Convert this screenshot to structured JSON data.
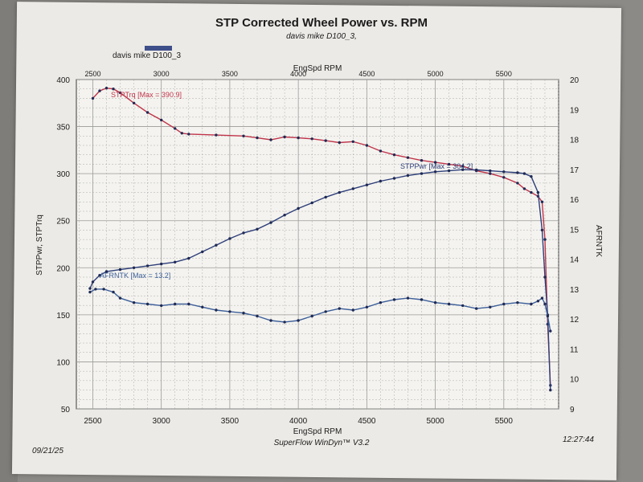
{
  "header": {
    "title": "STP Corrected Wheel Power vs. RPM",
    "subtitle": "davis mike D100_3,",
    "legend_label": "davis mike D100_3"
  },
  "footer": {
    "date": "09/21/25",
    "software": "SuperFlow WinDyn™ V3.2",
    "time": "12:27:44"
  },
  "colors": {
    "paper": "#eceae6",
    "torque": "#c0344a",
    "power": "#2e3f7a",
    "afr": "#3d5f9a",
    "grid": "#9a9a9a"
  },
  "chart_data": {
    "type": "line",
    "title": "STP Corrected Wheel Power vs. RPM",
    "xlabel": "EngSpd RPM",
    "x2label": "EngSpd RPM",
    "ylabel": "STPPwr, STPTrq",
    "y2label": "AFRNTK",
    "xlim": [
      2380,
      5900
    ],
    "ylim": [
      50,
      400
    ],
    "y2lim": [
      9,
      20
    ],
    "xticks": [
      2500,
      3000,
      3500,
      4000,
      4500,
      5000,
      5500
    ],
    "yticks": [
      50,
      100,
      150,
      200,
      250,
      300,
      350,
      400
    ],
    "y2ticks": [
      9,
      10,
      11,
      12,
      13,
      14,
      15,
      16,
      17,
      18,
      19,
      20
    ],
    "grid": true,
    "series": [
      {
        "name": "STPTrq",
        "annotation": "STPTrq [Max = 390.9]",
        "axis": "left",
        "x": [
          2500,
          2550,
          2600,
          2650,
          2700,
          2800,
          2900,
          3000,
          3100,
          3150,
          3200,
          3400,
          3600,
          3700,
          3800,
          3900,
          4000,
          4100,
          4200,
          4300,
          4400,
          4500,
          4600,
          4700,
          4800,
          4900,
          5000,
          5100,
          5200,
          5300,
          5400,
          5500,
          5600,
          5650,
          5700,
          5750,
          5780,
          5800,
          5820,
          5840
        ],
        "values": [
          380,
          388,
          390.9,
          390,
          386,
          375,
          365,
          357,
          348,
          343,
          342,
          341,
          340,
          338,
          336,
          339,
          338,
          337,
          335,
          333,
          334,
          330,
          324,
          320,
          317,
          314,
          312,
          310,
          308,
          303,
          300,
          296,
          290,
          284,
          280,
          276,
          270,
          230,
          140,
          75
        ]
      },
      {
        "name": "STPPwr",
        "annotation": "STPPwr [Max = 304.2]",
        "axis": "left",
        "x": [
          2480,
          2500,
          2550,
          2600,
          2700,
          2800,
          2900,
          3000,
          3100,
          3200,
          3300,
          3400,
          3500,
          3600,
          3700,
          3800,
          3900,
          4000,
          4100,
          4200,
          4300,
          4400,
          4500,
          4600,
          4700,
          4800,
          4900,
          5000,
          5100,
          5200,
          5300,
          5400,
          5500,
          5600,
          5650,
          5700,
          5750,
          5780,
          5800,
          5820,
          5840
        ],
        "values": [
          178,
          185,
          192,
          196,
          198,
          200,
          202,
          204,
          206,
          210,
          217,
          224,
          231,
          237,
          241,
          248,
          256,
          263,
          269,
          275,
          280,
          284,
          288,
          292,
          295,
          298,
          300,
          302,
          303,
          304.2,
          304,
          303,
          302,
          301,
          300,
          297,
          280,
          240,
          190,
          150,
          70
        ]
      },
      {
        "name": "AFRNTK",
        "annotation": "AFRNTK [Max = 13.2]",
        "axis": "right",
        "x": [
          2480,
          2520,
          2580,
          2650,
          2700,
          2800,
          2900,
          3000,
          3100,
          3200,
          3300,
          3400,
          3500,
          3600,
          3700,
          3800,
          3900,
          4000,
          4100,
          4200,
          4300,
          4400,
          4500,
          4600,
          4700,
          4800,
          4900,
          5000,
          5100,
          5200,
          5300,
          5400,
          5500,
          5600,
          5700,
          5750,
          5780,
          5800,
          5820,
          5840
        ],
        "values": [
          12.9,
          13.0,
          13.0,
          12.9,
          12.7,
          12.55,
          12.5,
          12.45,
          12.5,
          12.5,
          12.4,
          12.3,
          12.25,
          12.2,
          12.1,
          11.95,
          11.9,
          11.95,
          12.1,
          12.25,
          12.35,
          12.3,
          12.4,
          12.55,
          12.65,
          12.7,
          12.65,
          12.55,
          12.5,
          12.45,
          12.35,
          12.4,
          12.5,
          12.55,
          12.5,
          12.6,
          12.7,
          12.5,
          12.1,
          11.6
        ]
      }
    ]
  }
}
